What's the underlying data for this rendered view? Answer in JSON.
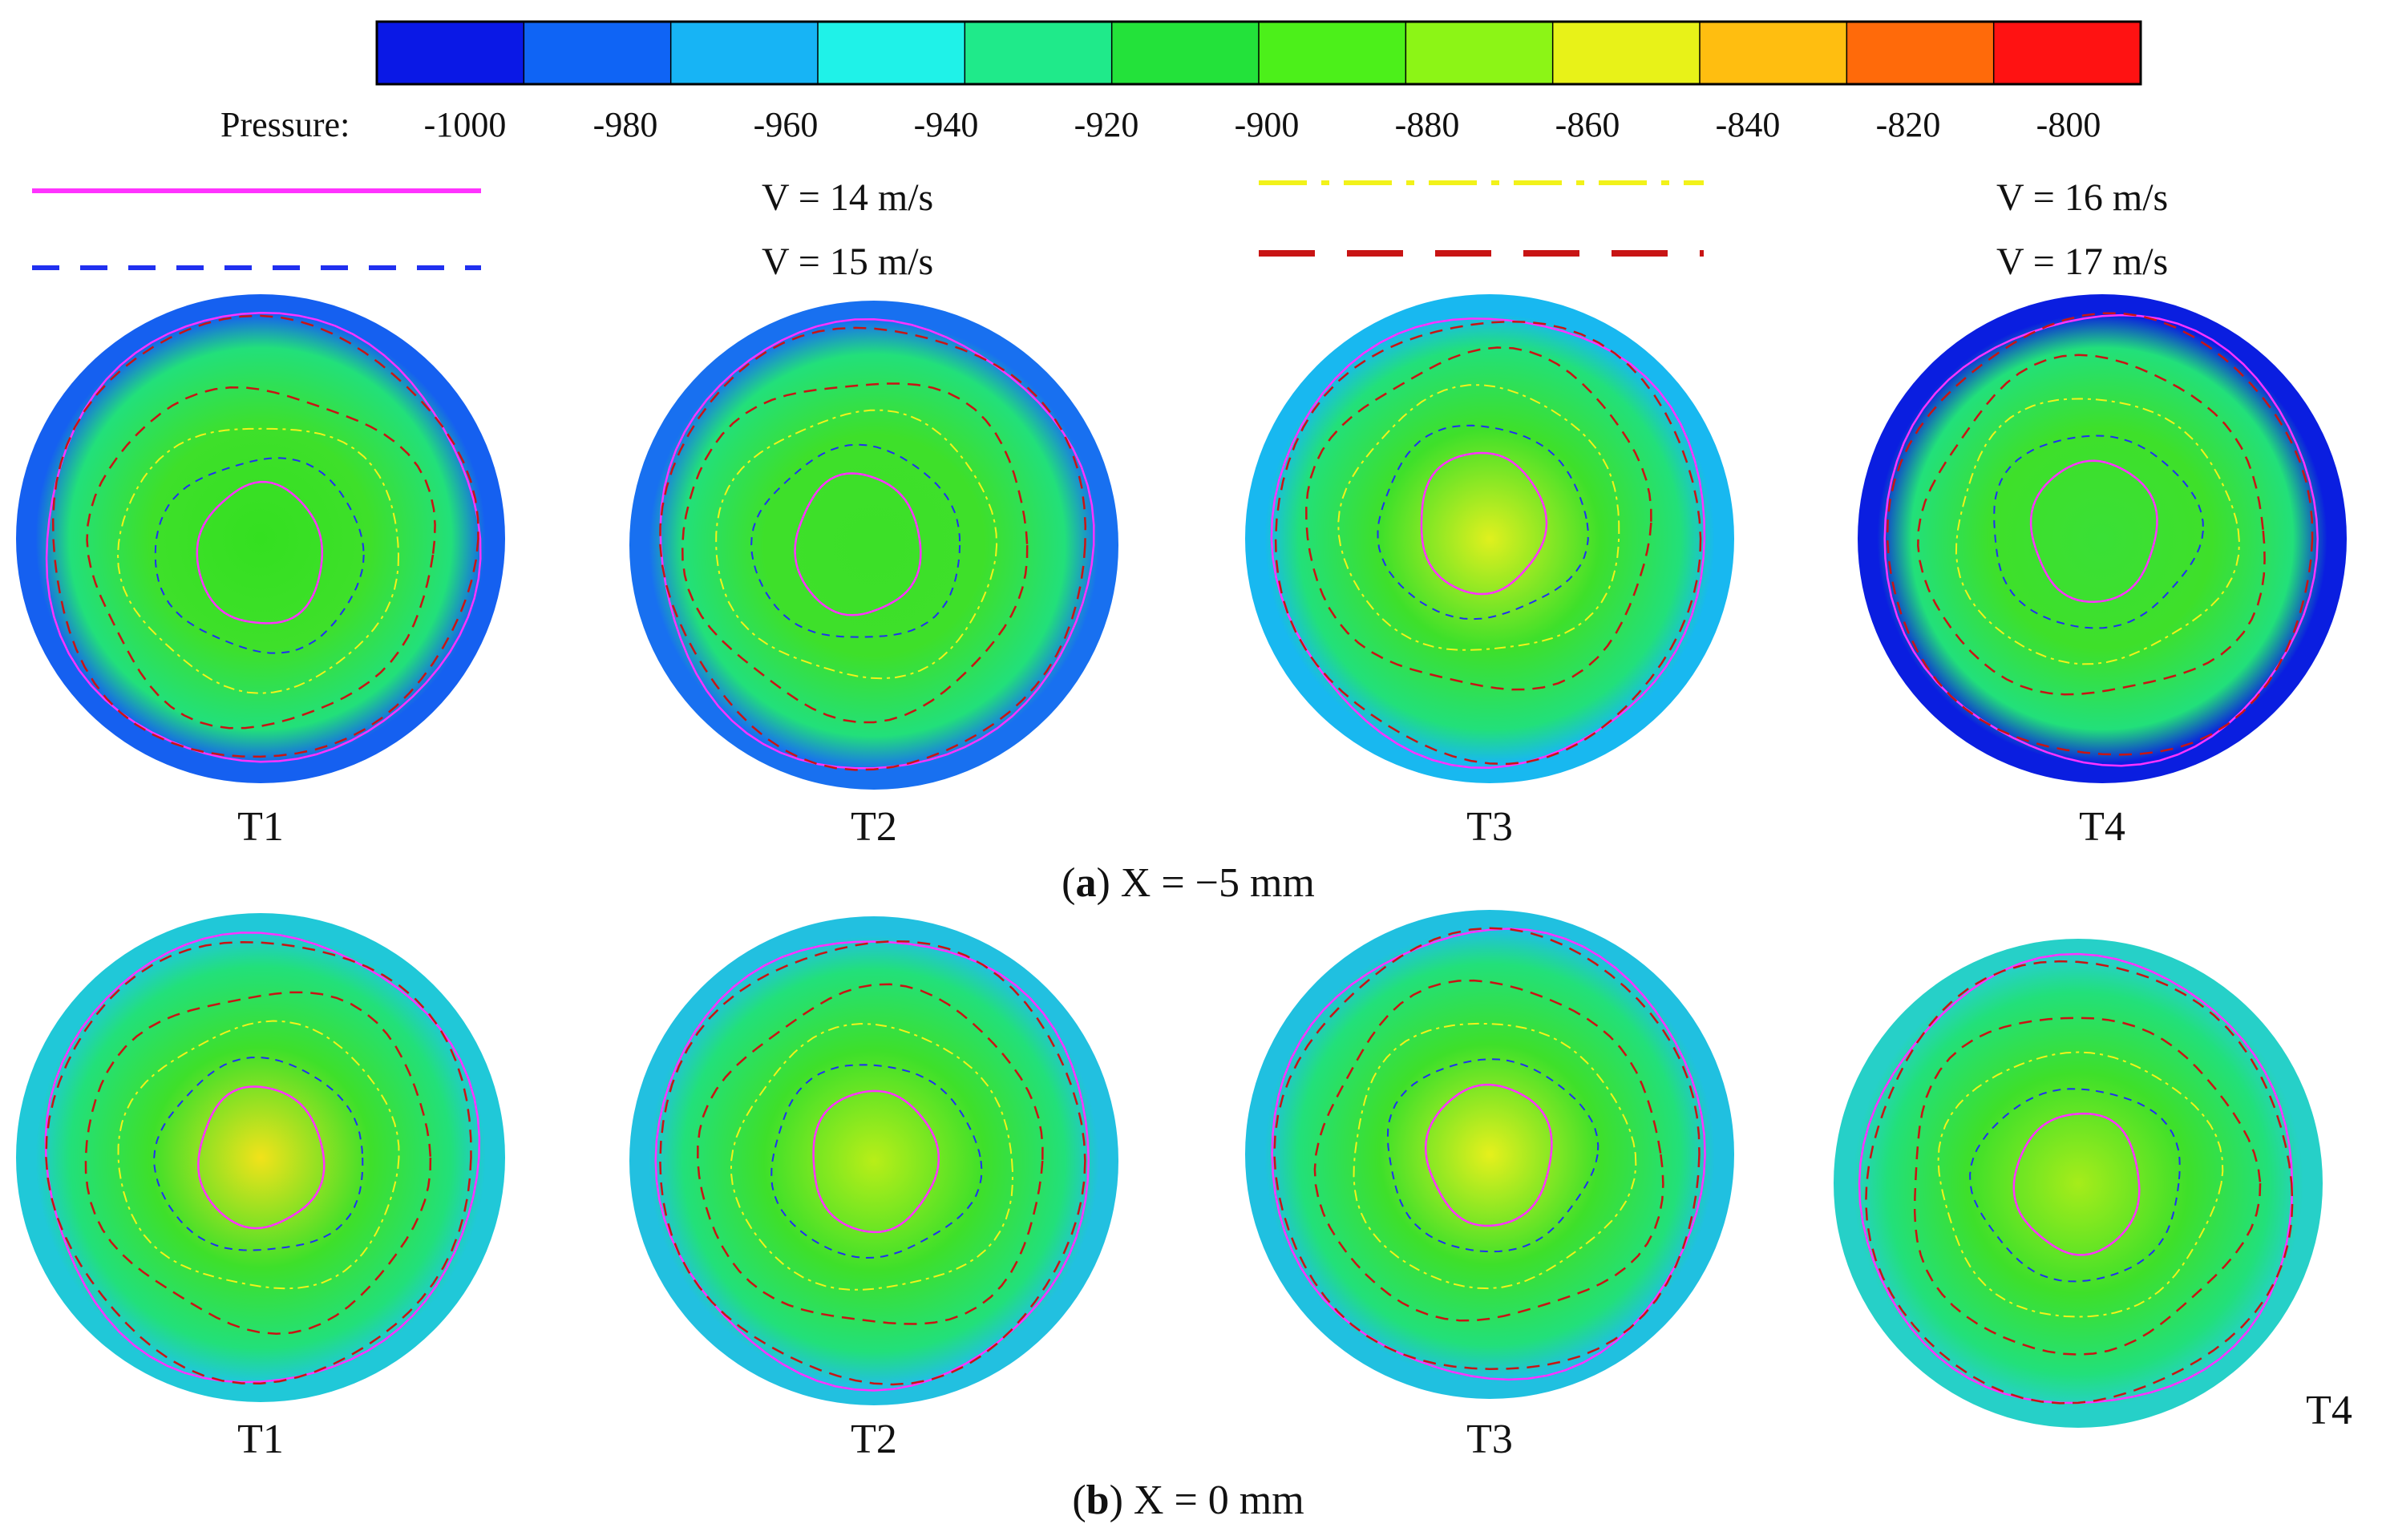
{
  "colorbar": {
    "label": "Pressure:",
    "ticks": [
      "-1000",
      "-980",
      "-960",
      "-940",
      "-920",
      "-900",
      "-880",
      "-860",
      "-840",
      "-820",
      "-800"
    ],
    "colors": [
      "#0a18e6",
      "#0f64f5",
      "#17b4f5",
      "#1ff2e8",
      "#1fea8a",
      "#23e23a",
      "#4cf01a",
      "#8cf516",
      "#e8f218",
      "#ffbe10",
      "#ff6a0a",
      "#ff1212"
    ]
  },
  "legend": [
    {
      "label": "V = 14 m/s",
      "color": "#ff33ff",
      "style": "solid"
    },
    {
      "label": "V = 15 m/s",
      "color": "#2030f0",
      "style": "dash"
    },
    {
      "label": "V = 16 m/s",
      "color": "#f2f21a",
      "style": "dashdot"
    },
    {
      "label": "V = 17 m/s",
      "color": "#c81414",
      "style": "longdash"
    }
  ],
  "panels": [
    {
      "caption_letter": "a",
      "caption_text": ") X = −5 mm",
      "labels": [
        "T1",
        "T2",
        "T3",
        "T4"
      ],
      "centers": [
        {
          "color": "#34e020",
          "edge": "#1560f0"
        },
        {
          "color": "#3ce028",
          "edge": "#1870f0"
        },
        {
          "color": "#e0f01e",
          "edge": "#18b8f0"
        },
        {
          "color": "#3ae036",
          "edge": "#0a1ee0"
        }
      ]
    },
    {
      "caption_letter": "b",
      "caption_text": ") X = 0 mm",
      "labels": [
        "T1",
        "T2",
        "T3",
        "T4"
      ],
      "centers": [
        {
          "color": "#f2e21a",
          "edge": "#20c8d8"
        },
        {
          "color": "#b8ee18",
          "edge": "#22c0e0"
        },
        {
          "color": "#e6f01c",
          "edge": "#20c0e0"
        },
        {
          "color": "#a6ec1a",
          "edge": "#26d0c8"
        }
      ]
    }
  ]
}
